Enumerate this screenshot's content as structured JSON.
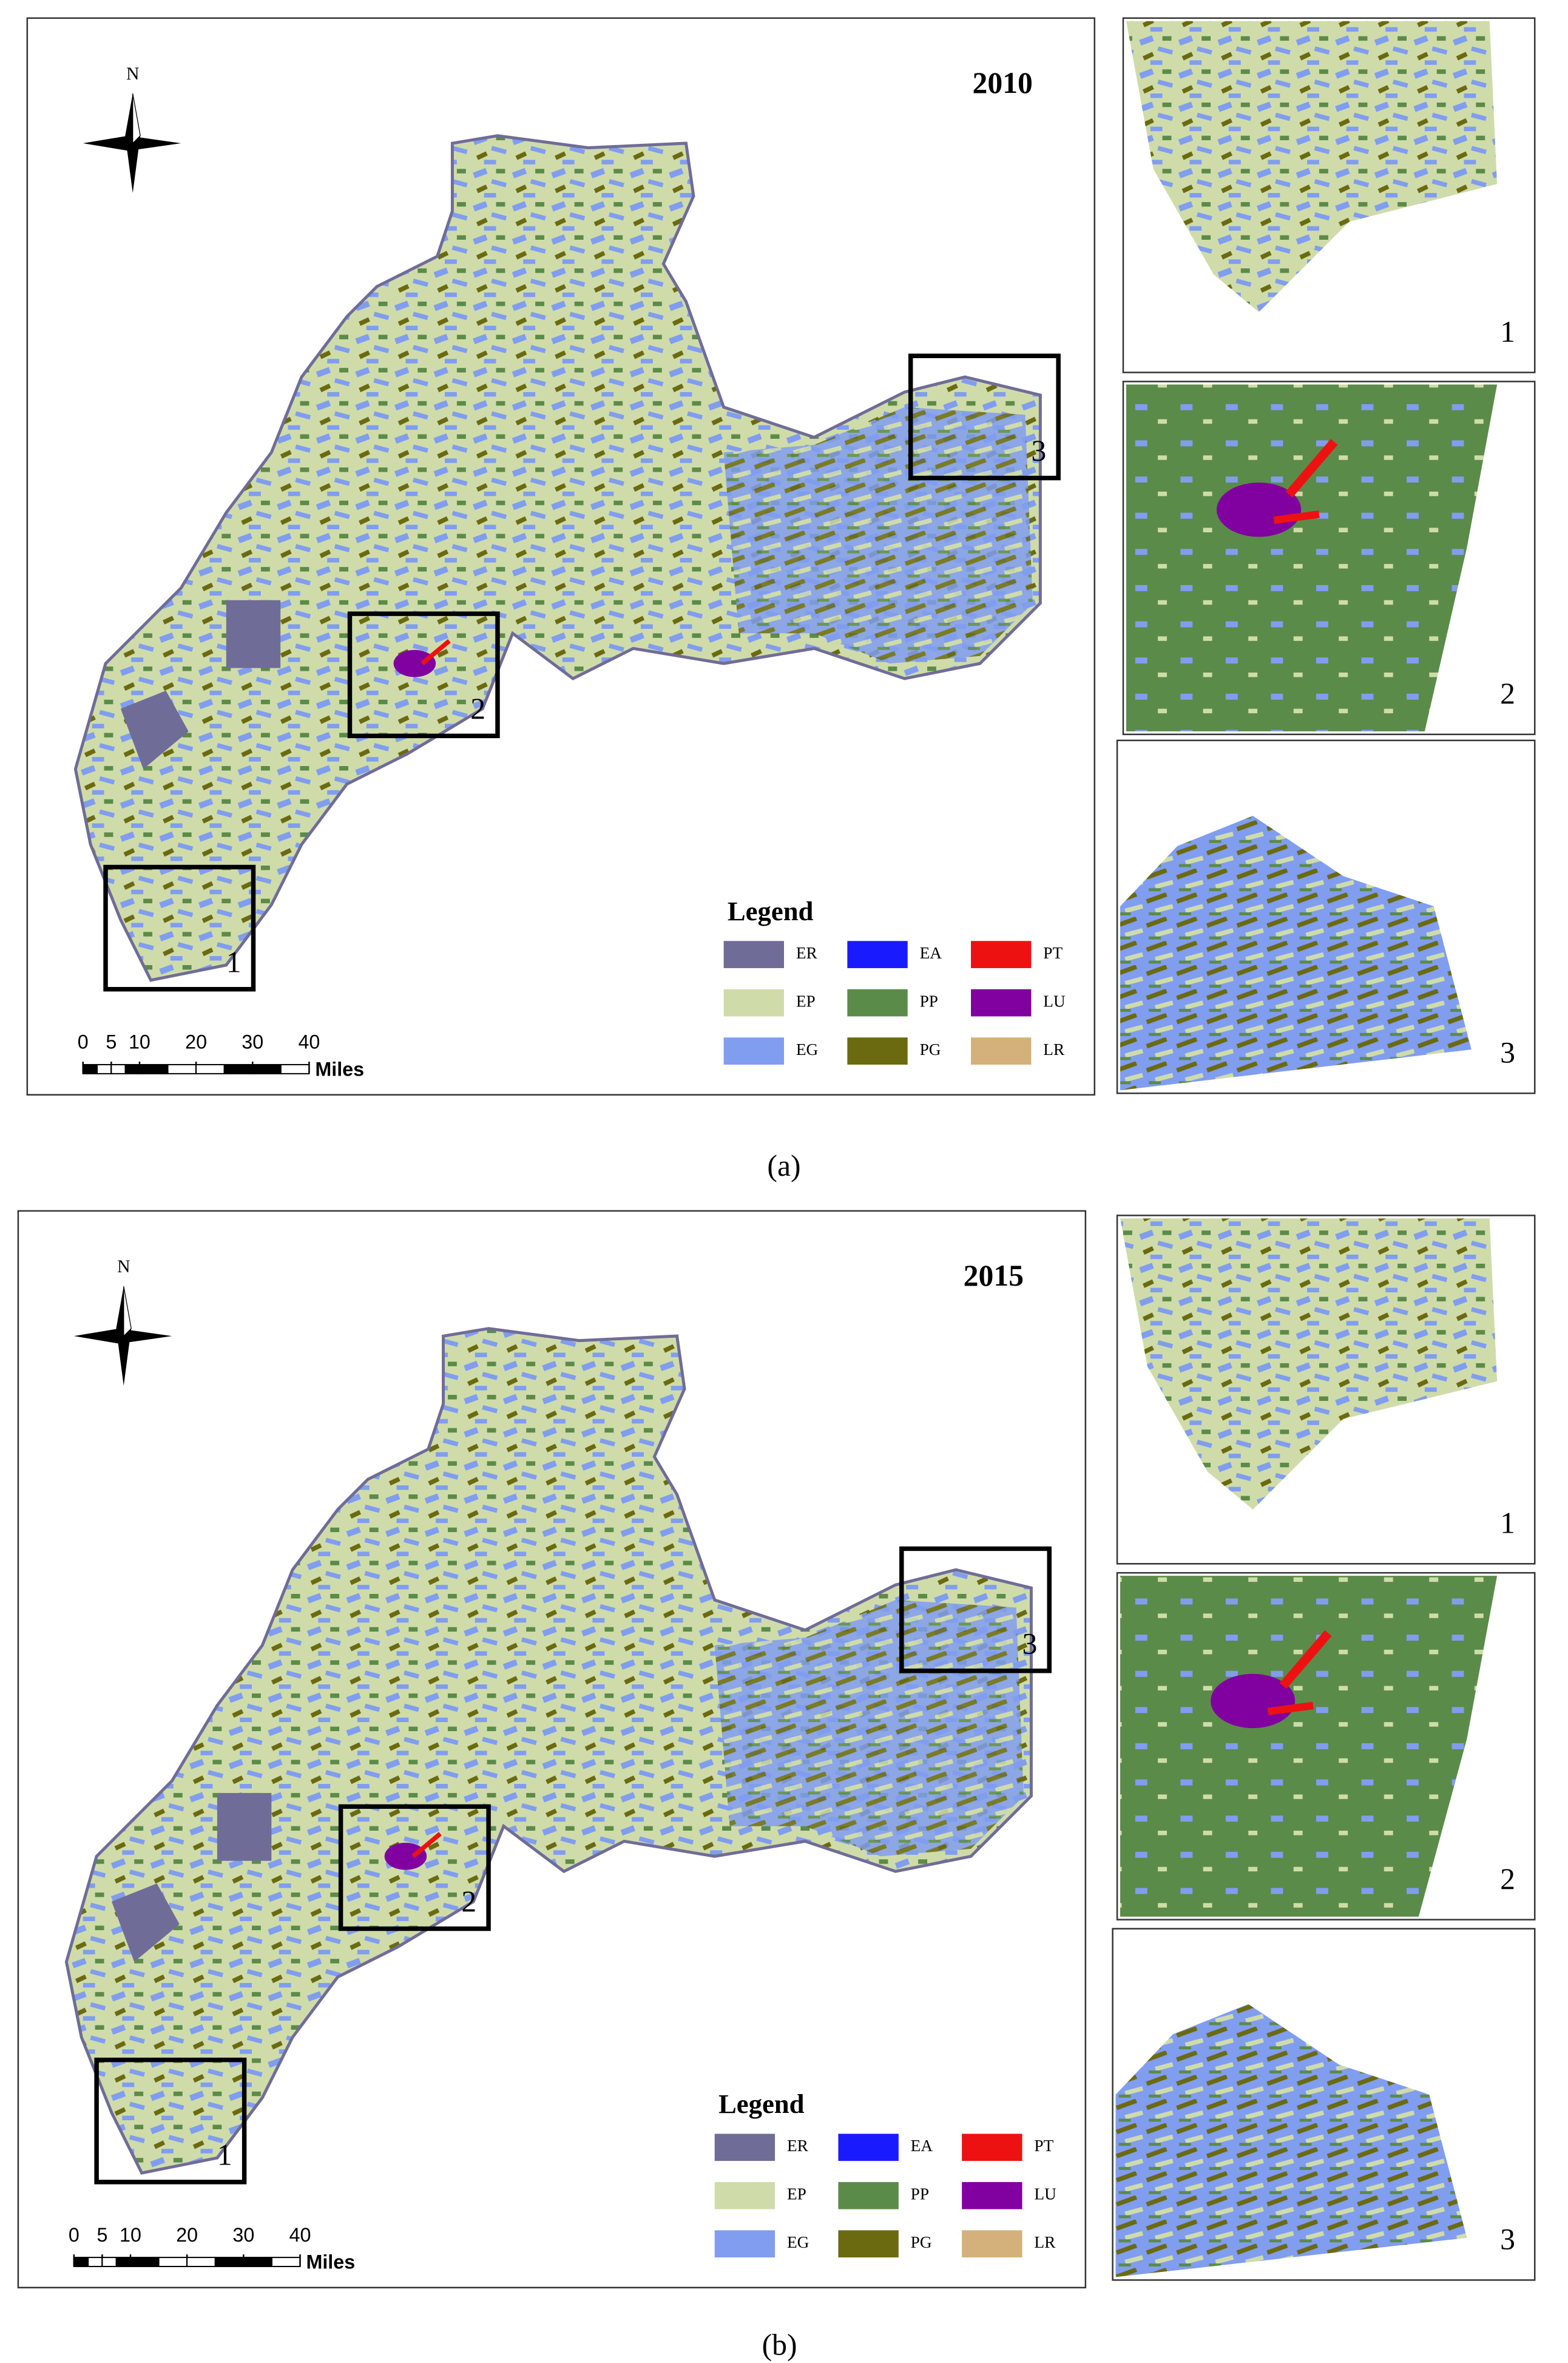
{
  "panels": [
    {
      "caption": "(a)",
      "year": "2010",
      "north": "N",
      "legend_title": "Legend",
      "legend": [
        {
          "code": "ER",
          "color": "#706c98"
        },
        {
          "code": "EA",
          "color": "#1a1aff"
        },
        {
          "code": "PT",
          "color": "#ee1111"
        },
        {
          "code": "EP",
          "color": "#cfdcaa"
        },
        {
          "code": "PP",
          "color": "#5b8b48"
        },
        {
          "code": "LU",
          "color": "#8000a0"
        },
        {
          "code": "EG",
          "color": "#809df0"
        },
        {
          "code": "PG",
          "color": "#6b6a10"
        },
        {
          "code": "LR",
          "color": "#d4b07a"
        }
      ],
      "scale_ticks": [
        0,
        5,
        10,
        20,
        30,
        40
      ],
      "scale_unit": "Miles",
      "insets": [
        "1",
        "2",
        "3"
      ]
    },
    {
      "caption": "(b)",
      "year": "2015",
      "north": "N",
      "legend_title": "Legend",
      "legend": [
        {
          "code": "ER",
          "color": "#706c98"
        },
        {
          "code": "EA",
          "color": "#1a1aff"
        },
        {
          "code": "PT",
          "color": "#ee1111"
        },
        {
          "code": "EP",
          "color": "#cfdcaa"
        },
        {
          "code": "PP",
          "color": "#5b8b48"
        },
        {
          "code": "LU",
          "color": "#8000a0"
        },
        {
          "code": "EG",
          "color": "#809df0"
        },
        {
          "code": "PG",
          "color": "#6b6a10"
        },
        {
          "code": "LR",
          "color": "#d4b07a"
        }
      ],
      "scale_ticks": [
        0,
        5,
        10,
        20,
        30,
        40
      ],
      "scale_unit": "Miles",
      "insets": [
        "1",
        "2",
        "3"
      ]
    }
  ]
}
